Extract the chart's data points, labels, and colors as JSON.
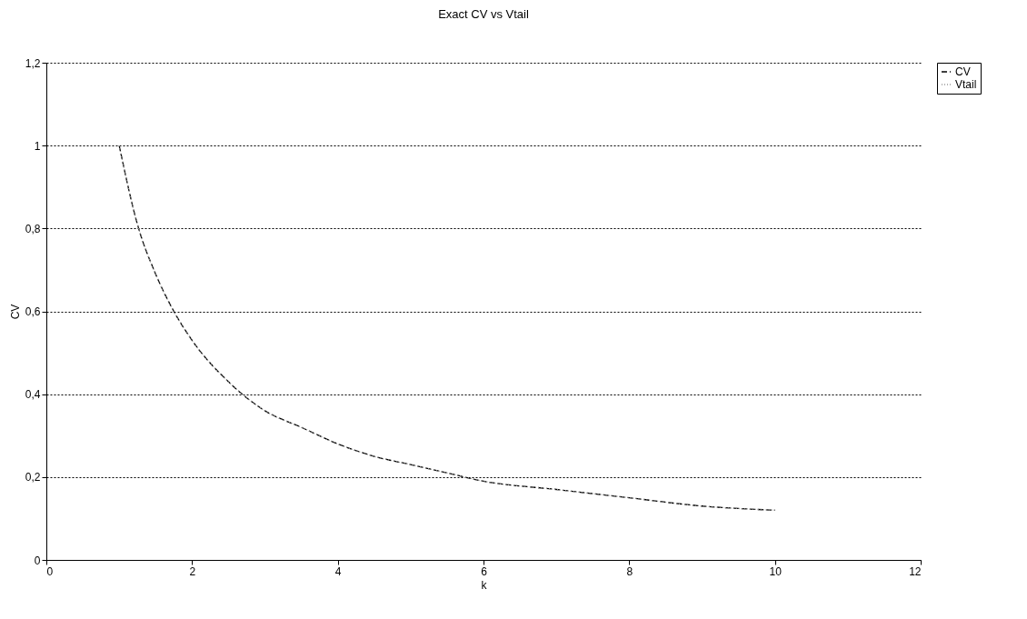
{
  "chart_data": {
    "type": "line",
    "title": "Exact CV vs Vtail",
    "xlabel": "k",
    "ylabel": "CV",
    "x": [
      1,
      1.25,
      1.5,
      1.75,
      2,
      2.5,
      3,
      3.5,
      4,
      4.5,
      5,
      5.5,
      6,
      7,
      8,
      9,
      10
    ],
    "series": [
      {
        "name": "CV",
        "color": "#000000",
        "line_style": "dashed",
        "values": [
          1.0,
          0.81,
          0.69,
          0.6,
          0.53,
          0.43,
          0.36,
          0.32,
          0.28,
          0.25,
          0.23,
          0.21,
          0.19,
          0.17,
          0.15,
          0.13,
          0.12
        ]
      },
      {
        "name": "Vtail",
        "color": "#999999",
        "line_style": "dotted",
        "values": [
          1.0,
          0.81,
          0.69,
          0.6,
          0.53,
          0.43,
          0.36,
          0.32,
          0.28,
          0.25,
          0.23,
          0.21,
          0.19,
          0.17,
          0.15,
          0.13,
          0.12
        ]
      }
    ],
    "xlim": [
      0,
      12
    ],
    "xticks": [
      0,
      2,
      4,
      6,
      8,
      10,
      12
    ],
    "ylim": [
      0,
      1.2
    ],
    "yticks": [
      0,
      {
        "value": 0.2,
        "label": "0,2"
      },
      {
        "value": 0.4,
        "label": "0,4"
      },
      {
        "value": 0.6,
        "label": "0,6"
      },
      {
        "value": 0.8,
        "label": "0,8"
      },
      1,
      {
        "value": 1.2,
        "label": "1,2"
      }
    ],
    "grid": "y",
    "legend": "right"
  }
}
